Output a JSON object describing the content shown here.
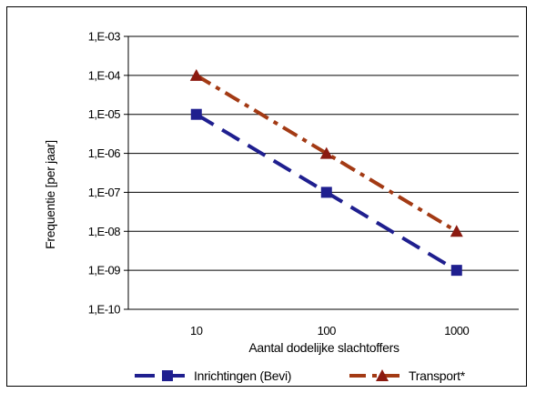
{
  "chart_data": {
    "type": "line",
    "title": "",
    "xlabel": "Aantal dodelijke slachtoffers",
    "ylabel": "Frequentie [per jaar]",
    "x_scale": "log",
    "y_scale": "log",
    "x": [
      10,
      100,
      1000
    ],
    "x_tick_labels": [
      "10",
      "100",
      "1000"
    ],
    "xlim": [
      3,
      3000
    ],
    "ylim": [
      1e-10,
      0.001
    ],
    "y_tick_labels": [
      "1,E-03",
      "1,E-04",
      "1,E-05",
      "1,E-06",
      "1,E-07",
      "1,E-08",
      "1,E-09",
      "1,E-10"
    ],
    "grid": "horizontal",
    "legend_position": "bottom",
    "series": [
      {
        "name": "Inrichtingen (Bevi)",
        "values": [
          1e-05,
          1e-07,
          1e-09
        ],
        "color": "#1f1f8f",
        "marker": "square",
        "dash": "long-dash"
      },
      {
        "name": "Transport*",
        "values": [
          0.0001,
          1e-06,
          1e-08
        ],
        "color": "#a33a14",
        "marker": "triangle",
        "dash": "dash-dot",
        "marker_color": "#8b1a10"
      }
    ]
  }
}
